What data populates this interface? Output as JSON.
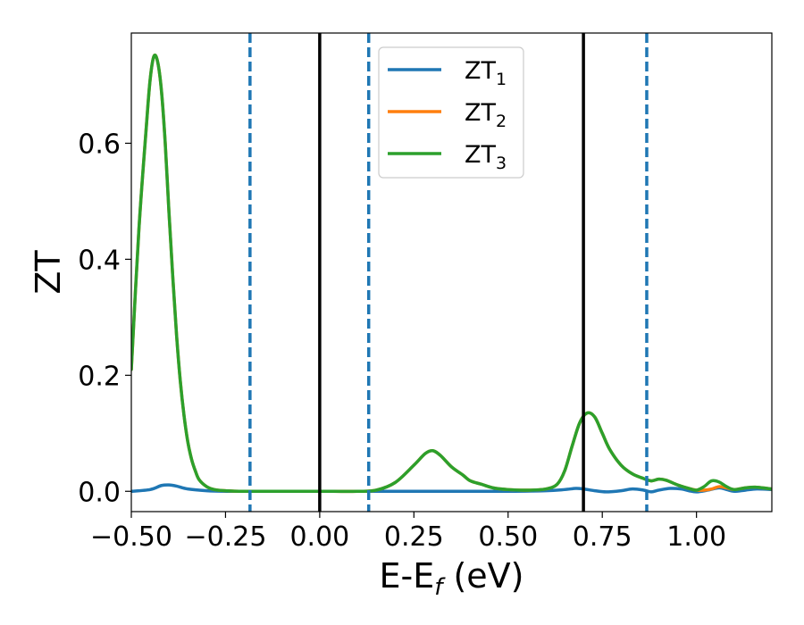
{
  "chart_data": {
    "type": "line",
    "xlabel": {
      "main": "E-E",
      "sub": "f",
      "tail": " (eV)"
    },
    "ylabel": "ZT",
    "xlim": [
      -0.5,
      1.2
    ],
    "ylim": [
      -0.035,
      0.79
    ],
    "xticks": [
      -0.5,
      -0.25,
      0.0,
      0.25,
      0.5,
      0.75,
      1.0
    ],
    "xtick_labels": [
      "−0.50",
      "−0.25",
      "0.00",
      "0.25",
      "0.50",
      "0.75",
      "1.00"
    ],
    "yticks": [
      0.0,
      0.2,
      0.4,
      0.6
    ],
    "ytick_labels": [
      "0.0",
      "0.2",
      "0.4",
      "0.6"
    ],
    "grid": false,
    "legend_placement": "top-center",
    "vlines_solid": {
      "color": "#000000",
      "x": [
        0.0,
        0.7
      ]
    },
    "vlines_dashed": {
      "color": "#1f77b4",
      "x": [
        -0.185,
        0.13,
        0.868
      ]
    },
    "series": [
      {
        "name": "ZT",
        "sub": "1",
        "color": "#1f77b4",
        "x": [
          -0.5,
          -0.45,
          -0.42,
          -0.4,
          -0.38,
          -0.35,
          -0.3,
          -0.25,
          -0.2,
          -0.1,
          0.0,
          0.1,
          0.2,
          0.3,
          0.4,
          0.5,
          0.6,
          0.65,
          0.68,
          0.7,
          0.73,
          0.76,
          0.8,
          0.83,
          0.86,
          0.88,
          0.9,
          0.93,
          0.96,
          0.98,
          1.0,
          1.03,
          1.06,
          1.08,
          1.1,
          1.13,
          1.16,
          1.2
        ],
        "y": [
          0.0,
          0.003,
          0.01,
          0.011,
          0.009,
          0.004,
          0.001,
          0.0,
          0.0,
          0.0,
          0.0,
          0.0,
          0.0,
          0.0,
          0.0,
          0.0,
          0.001,
          0.003,
          0.005,
          0.004,
          0.001,
          -0.001,
          0.001,
          0.004,
          0.002,
          -0.001,
          0.002,
          0.005,
          0.004,
          0.001,
          -0.001,
          0.002,
          0.006,
          0.003,
          0.0,
          0.002,
          0.004,
          0.003
        ]
      },
      {
        "name": "ZT",
        "sub": "2",
        "color": "#ff7f0e",
        "x": [
          -0.5,
          -0.48,
          -0.46,
          -0.45,
          -0.44,
          -0.43,
          -0.42,
          -0.41,
          -0.4,
          -0.39,
          -0.38,
          -0.37,
          -0.36,
          -0.35,
          -0.34,
          -0.33,
          -0.32,
          -0.3,
          -0.28,
          -0.25,
          -0.2,
          -0.15,
          -0.1,
          0.0,
          0.1,
          0.15,
          0.2,
          0.25,
          0.28,
          0.3,
          0.32,
          0.35,
          0.38,
          0.4,
          0.43,
          0.46,
          0.5,
          0.55,
          0.6,
          0.63,
          0.65,
          0.67,
          0.69,
          0.71,
          0.73,
          0.75,
          0.77,
          0.8,
          0.83,
          0.86,
          0.88,
          0.9,
          0.92,
          0.95,
          0.98,
          1.0,
          1.02,
          1.04,
          1.06,
          1.08,
          1.1,
          1.13,
          1.16,
          1.2
        ],
        "y": [
          0.21,
          0.45,
          0.63,
          0.71,
          0.75,
          0.74,
          0.69,
          0.6,
          0.48,
          0.37,
          0.27,
          0.19,
          0.13,
          0.085,
          0.055,
          0.035,
          0.02,
          0.008,
          0.003,
          0.001,
          0.0,
          0.0,
          0.0,
          0.0,
          0.0,
          0.002,
          0.015,
          0.045,
          0.065,
          0.07,
          0.062,
          0.042,
          0.028,
          0.018,
          0.012,
          0.006,
          0.003,
          0.002,
          0.004,
          0.012,
          0.035,
          0.078,
          0.118,
          0.135,
          0.128,
          0.1,
          0.072,
          0.045,
          0.03,
          0.022,
          0.018,
          0.021,
          0.019,
          0.011,
          0.005,
          0.002,
          0.002,
          0.004,
          0.008,
          0.006,
          0.003,
          0.006,
          0.007,
          0.004
        ]
      },
      {
        "name": "ZT",
        "sub": "3",
        "color": "#2ca02c",
        "x": [
          -0.5,
          -0.48,
          -0.46,
          -0.45,
          -0.44,
          -0.43,
          -0.42,
          -0.41,
          -0.4,
          -0.39,
          -0.38,
          -0.37,
          -0.36,
          -0.35,
          -0.34,
          -0.33,
          -0.32,
          -0.3,
          -0.28,
          -0.25,
          -0.2,
          -0.15,
          -0.1,
          0.0,
          0.1,
          0.15,
          0.2,
          0.25,
          0.28,
          0.3,
          0.32,
          0.35,
          0.38,
          0.4,
          0.43,
          0.46,
          0.5,
          0.55,
          0.6,
          0.63,
          0.65,
          0.67,
          0.69,
          0.71,
          0.73,
          0.75,
          0.77,
          0.8,
          0.83,
          0.86,
          0.88,
          0.9,
          0.92,
          0.95,
          0.98,
          1.0,
          1.02,
          1.04,
          1.06,
          1.08,
          1.1,
          1.13,
          1.16,
          1.2
        ],
        "y": [
          0.21,
          0.45,
          0.63,
          0.71,
          0.75,
          0.74,
          0.69,
          0.6,
          0.48,
          0.37,
          0.27,
          0.19,
          0.13,
          0.085,
          0.055,
          0.035,
          0.02,
          0.008,
          0.003,
          0.001,
          0.0,
          0.0,
          0.0,
          0.0,
          0.0,
          0.002,
          0.015,
          0.045,
          0.065,
          0.07,
          0.062,
          0.042,
          0.028,
          0.018,
          0.012,
          0.006,
          0.003,
          0.002,
          0.004,
          0.012,
          0.035,
          0.078,
          0.118,
          0.135,
          0.128,
          0.1,
          0.072,
          0.045,
          0.03,
          0.022,
          0.018,
          0.021,
          0.019,
          0.011,
          0.005,
          0.002,
          0.008,
          0.018,
          0.016,
          0.008,
          0.003,
          0.006,
          0.007,
          0.004
        ]
      }
    ]
  }
}
